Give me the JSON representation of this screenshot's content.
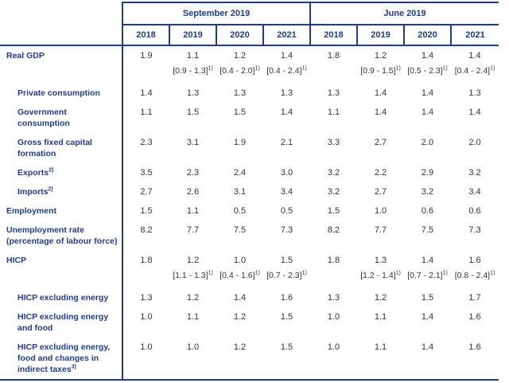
{
  "colors": {
    "accent_blue": "#1c3c99",
    "value_text": "#333333"
  },
  "header": {
    "groups": [
      {
        "label": "September 2019",
        "years": [
          "2018",
          "2019",
          "2020",
          "2021"
        ]
      },
      {
        "label": "June 2019",
        "years": [
          "2018",
          "2019",
          "2020",
          "2021"
        ]
      }
    ]
  },
  "range_footnote_marker": "1)",
  "rows": [
    {
      "name": "real-gdp",
      "label_lines": [
        "Real GDP"
      ],
      "sup": "",
      "indent": false,
      "values": [
        "1.9",
        "1.1",
        "1.2",
        "1.4",
        "1.8",
        "1.2",
        "1.4",
        "1.4"
      ],
      "ranges": [
        "",
        "[0.9 - 1.3]",
        "[0.4 - 2.0]",
        "[0.4 - 2.4]",
        "",
        "[0.9 - 1.5]",
        "[0.5 - 2.3]",
        "[0.4 - 2.4]"
      ]
    },
    {
      "name": "private-consumption",
      "label_lines": [
        "Private consumption"
      ],
      "sup": "",
      "indent": true,
      "values": [
        "1.4",
        "1.3",
        "1.3",
        "1.3",
        "1.3",
        "1.4",
        "1.4",
        "1.3"
      ]
    },
    {
      "name": "government-consumption",
      "label_lines": [
        "Government",
        "consumption"
      ],
      "sup": "",
      "indent": true,
      "values": [
        "1.1",
        "1.5",
        "1.5",
        "1.4",
        "1.1",
        "1.4",
        "1.4",
        "1.4"
      ]
    },
    {
      "name": "gross-fixed-capital-formation",
      "label_lines": [
        "Gross fixed capital",
        "formation"
      ],
      "sup": "",
      "indent": true,
      "values": [
        "2.3",
        "3.1",
        "1.9",
        "2.1",
        "3.3",
        "2.7",
        "2.0",
        "2.0"
      ]
    },
    {
      "name": "exports",
      "label_lines": [
        "Exports"
      ],
      "sup": "2)",
      "indent": true,
      "values": [
        "3.5",
        "2.3",
        "2.4",
        "3.0",
        "3.2",
        "2.2",
        "2.9",
        "3.2"
      ]
    },
    {
      "name": "imports",
      "label_lines": [
        "Imports"
      ],
      "sup": "2)",
      "indent": true,
      "values": [
        "2.7",
        "2.6",
        "3.1",
        "3.4",
        "3.2",
        "2.7",
        "3.2",
        "3.4"
      ]
    },
    {
      "name": "employment",
      "label_lines": [
        "Employment"
      ],
      "sup": "",
      "indent": false,
      "values": [
        "1.5",
        "1.1",
        "0.5",
        "0.5",
        "1.5",
        "1.0",
        "0.6",
        "0.6"
      ]
    },
    {
      "name": "unemployment-rate",
      "label_lines": [
        "Unemployment rate",
        "(percentage of labour force)"
      ],
      "sup": "",
      "indent": false,
      "values": [
        "8.2",
        "7.7",
        "7.5",
        "7.3",
        "8.2",
        "7.7",
        "7.5",
        "7.3"
      ]
    },
    {
      "name": "hicp",
      "label_lines": [
        "HICP"
      ],
      "sup": "",
      "indent": false,
      "values": [
        "1.8",
        "1.2",
        "1.0",
        "1.5",
        "1.8",
        "1.3",
        "1.4",
        "1.6"
      ],
      "ranges": [
        "",
        "[1.1 - 1.3]",
        "[0.4 - 1.6]",
        "[0.7 - 2.3]",
        "",
        "[1.2 - 1.4]",
        "[0.7 - 2.1]",
        "[0.8 - 2.4]"
      ]
    },
    {
      "name": "hicp-excluding-energy",
      "label_lines": [
        "HICP excluding energy"
      ],
      "sup": "",
      "indent": true,
      "values": [
        "1.3",
        "1.2",
        "1.4",
        "1.6",
        "1.3",
        "1.2",
        "1.5",
        "1.7"
      ]
    },
    {
      "name": "hicp-excluding-energy-and-food",
      "label_lines": [
        "HICP excluding energy",
        "and food"
      ],
      "sup": "",
      "indent": true,
      "values": [
        "1.0",
        "1.1",
        "1.2",
        "1.5",
        "1.0",
        "1.1",
        "1.4",
        "1.6"
      ]
    },
    {
      "name": "hicp-excluding-energy-food-indirect-taxes",
      "label_lines": [
        "HICP excluding energy,",
        "food and changes in",
        "indirect taxes"
      ],
      "sup": "3)",
      "indent": true,
      "values": [
        "1.0",
        "1.0",
        "1.2",
        "1.5",
        "1.0",
        "1.1",
        "1.4",
        "1.6"
      ]
    }
  ]
}
